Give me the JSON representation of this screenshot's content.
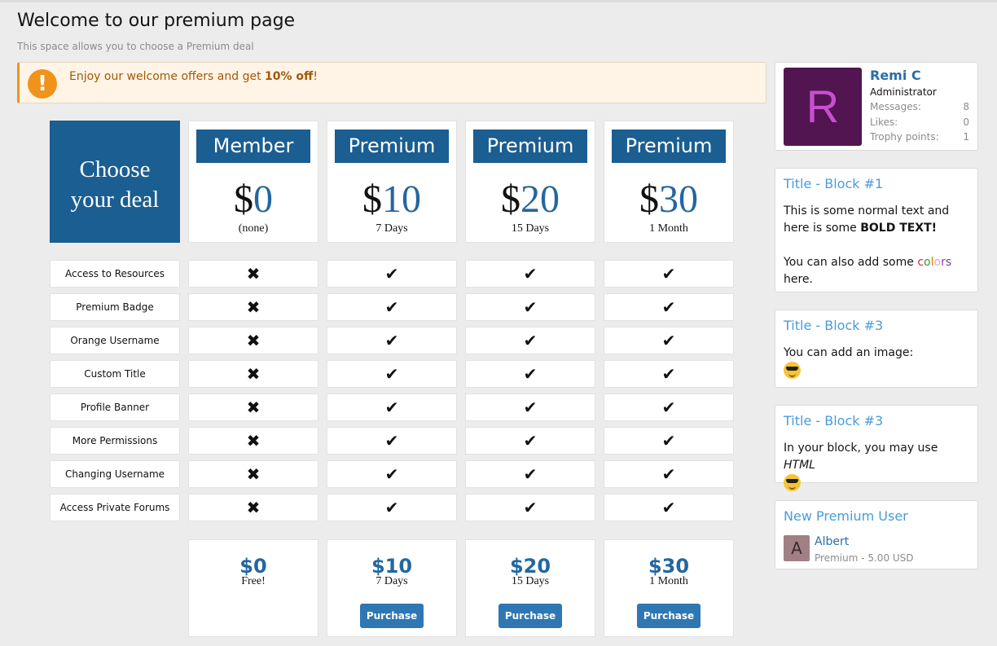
{
  "page": {
    "title": "Welcome to our premium page",
    "subtitle": "This space allows you to choose a Premium deal"
  },
  "notice": {
    "icon": "exclamation-icon",
    "text_before": "Enjoy our welcome offers and get ",
    "text_bold": "10% off",
    "text_after": "!",
    "color": "#f0931a"
  },
  "table": {
    "choose_line1": "Choose",
    "choose_line2": "your deal",
    "plans": [
      {
        "name": "Member",
        "currency": "$",
        "amount": "0",
        "period": "(none)",
        "footer_price": "$0",
        "footer_period": "Free!",
        "button": null
      },
      {
        "name": "Premium",
        "currency": "$",
        "amount": "10",
        "period": "7 Days",
        "footer_price": "$10",
        "footer_period": "7 Days",
        "button": "Purchase"
      },
      {
        "name": "Premium",
        "currency": "$",
        "amount": "20",
        "period": "15 Days",
        "footer_price": "$20",
        "footer_period": "15 Days",
        "button": "Purchase"
      },
      {
        "name": "Premium",
        "currency": "$",
        "amount": "30",
        "period": "1 Month",
        "footer_price": "$30",
        "footer_period": "1 Month",
        "button": "Purchase"
      }
    ],
    "features": [
      "Access to Resources",
      "Premium Badge",
      "Orange Username",
      "Custom Title",
      "Profile Banner",
      "More Permissions",
      "Changing Username",
      "Access Private Forums"
    ],
    "included": [
      [
        false,
        true,
        true,
        true
      ],
      [
        false,
        true,
        true,
        true
      ],
      [
        false,
        true,
        true,
        true
      ],
      [
        false,
        true,
        true,
        true
      ],
      [
        false,
        true,
        true,
        true
      ],
      [
        false,
        true,
        true,
        true
      ],
      [
        false,
        true,
        true,
        true
      ],
      [
        false,
        true,
        true,
        true
      ]
    ]
  },
  "sidebar": {
    "user": {
      "avatar_letter": "R",
      "avatar_color": "#521552",
      "name": "Remi C",
      "role": "Administrator",
      "stats": [
        {
          "label": "Messages:",
          "value": "8"
        },
        {
          "label": "Likes:",
          "value": "0"
        },
        {
          "label": "Trophy points:",
          "value": "1"
        }
      ]
    },
    "block1": {
      "title": "Title - Block #1",
      "text1": "This is some normal text and here is some ",
      "bold": "BOLD TEXT!",
      "text2": "You can also add some ",
      "colored": [
        "c",
        "o",
        "l",
        "o",
        "r",
        "s"
      ],
      "colors": [
        "#d9262e",
        "#2a9d3a",
        "#e07b00",
        "#f0a0c8",
        "#8a3fc0",
        "#6b3fa0"
      ],
      "text3": " here."
    },
    "block2": {
      "title": "Title - Block #3",
      "text": "You can add an image:",
      "icon": "sunglasses-emoji-icon"
    },
    "block3": {
      "title": "Title - Block #3",
      "text": "In your block, you may use ",
      "italic": "HTML",
      "icon": "sunglasses-emoji-icon"
    },
    "new_user": {
      "title": "New Premium User",
      "avatar_letter": "A",
      "name": "Albert",
      "detail": "Premium - 5.00 USD"
    }
  }
}
